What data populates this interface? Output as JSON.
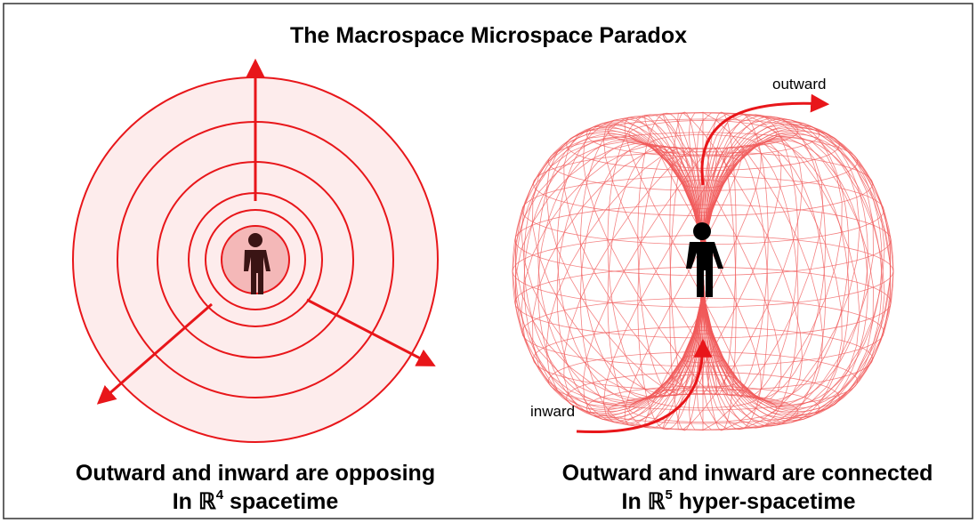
{
  "title": "The Macrospace  Microspace Paradox",
  "left": {
    "caption_line1": "Outward and inward are opposing",
    "caption_line2": {
      "prefix": "In ℝ",
      "sup": "4",
      "suffix": " spacetime"
    }
  },
  "right": {
    "label_outward": "outward",
    "label_inward": "inward",
    "caption_line1": "Outward and inward are connected",
    "caption_line2": {
      "prefix": "In ℝ",
      "sup": "5",
      "suffix": "  hyper-spacetime"
    }
  }
}
